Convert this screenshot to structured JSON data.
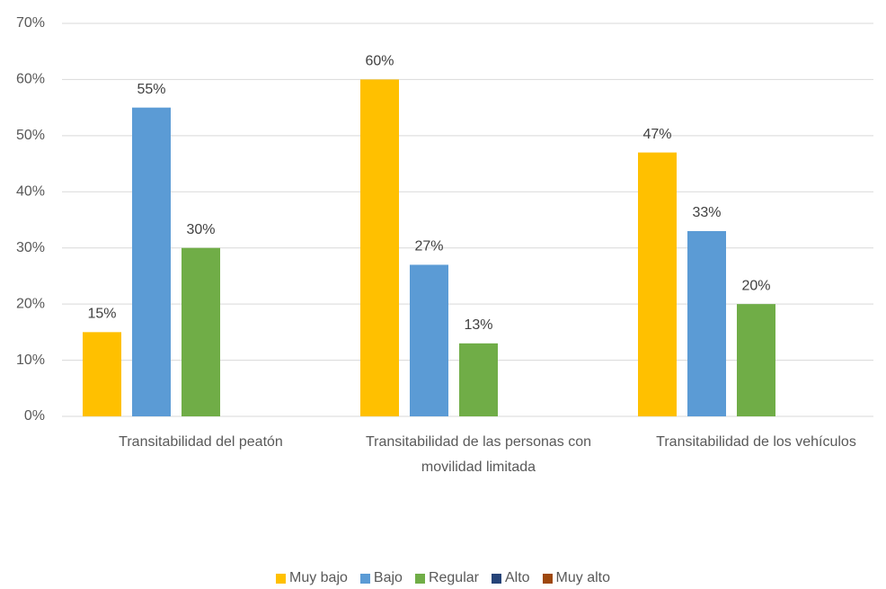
{
  "chart_data": {
    "type": "bar",
    "categories": [
      "Transitabilidad del peatón",
      "Transitabilidad de las personas con movilidad limitada",
      "Transitabilidad de los vehículos"
    ],
    "series": [
      {
        "name": "Muy bajo",
        "color": "#ffc000",
        "values": [
          15,
          60,
          47
        ],
        "value_labels": [
          "15%",
          "60%",
          "47%"
        ]
      },
      {
        "name": "Bajo",
        "color": "#5b9bd5",
        "values": [
          55,
          27,
          33
        ],
        "value_labels": [
          "55%",
          "27%",
          "33%"
        ]
      },
      {
        "name": "Regular",
        "color": "#70ad47",
        "values": [
          30,
          13,
          20
        ],
        "value_labels": [
          "30%",
          "13%",
          "20%"
        ]
      },
      {
        "name": "Alto",
        "color": "#264478",
        "values": [
          null,
          null,
          null
        ],
        "value_labels": [
          null,
          null,
          null
        ]
      },
      {
        "name": "Muy alto",
        "color": "#9e480e",
        "values": [
          null,
          null,
          null
        ],
        "value_labels": [
          null,
          null,
          null
        ]
      }
    ],
    "ylim": [
      0,
      70
    ],
    "yticks": [
      {
        "value": 0,
        "label": "0%"
      },
      {
        "value": 10,
        "label": "10%"
      },
      {
        "value": 20,
        "label": "20%"
      },
      {
        "value": 30,
        "label": "30%"
      },
      {
        "value": 40,
        "label": "40%"
      },
      {
        "value": 50,
        "label": "50%"
      },
      {
        "value": 60,
        "label": "60%"
      },
      {
        "value": 70,
        "label": "70%"
      }
    ],
    "grid": true,
    "legend": "bottom"
  }
}
